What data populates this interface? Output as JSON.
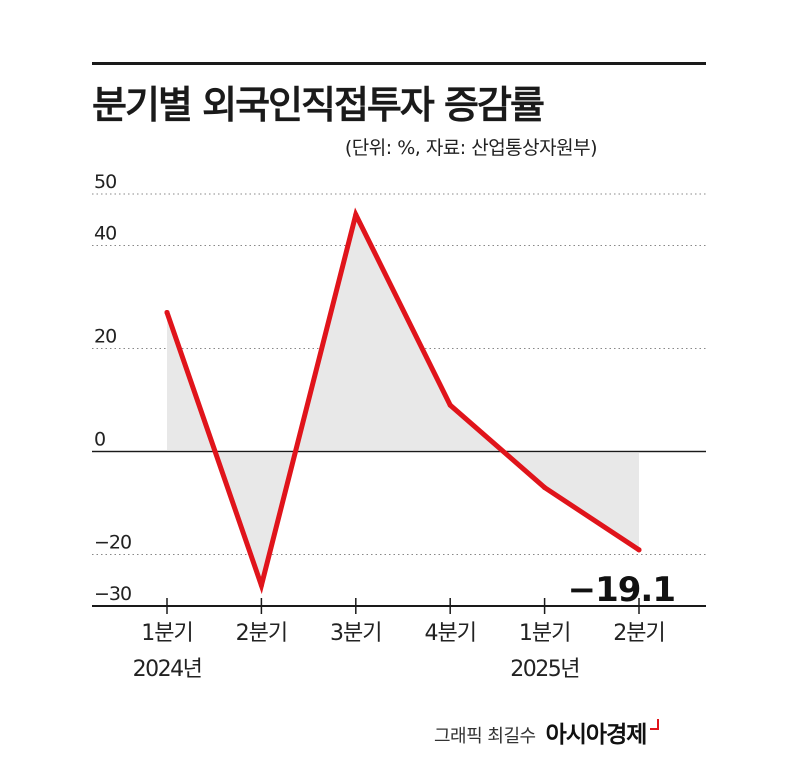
{
  "title": "분기별 외국인직접투자 증감률",
  "subtitle": "(단위: %, 자료: 산업통상자원부)",
  "credit": "그래픽 최길수",
  "brand": "아시아경제",
  "colors": {
    "line": "#e0141b",
    "fill": "#e8e8e8",
    "axis": "#1a1a1a",
    "grid": "#888888"
  },
  "chart_data": {
    "type": "line",
    "categories": [
      "1분기",
      "2분기",
      "3분기",
      "4분기",
      "1분기",
      "2분기"
    ],
    "year_labels": [
      "2024년",
      "",
      "",
      "",
      "2025년",
      ""
    ],
    "values": [
      27.0,
      -26.0,
      46.0,
      9.0,
      -7.0,
      -19.1
    ],
    "ylim": [
      -30,
      50
    ],
    "yticks": [
      50,
      40,
      20,
      0,
      -20,
      -30
    ],
    "ytick_labels": [
      "50",
      "40",
      "20",
      "0",
      "−20",
      "−30"
    ],
    "grid": "dotted horizontal",
    "annotation": {
      "text": "−19.1",
      "index": 5
    }
  }
}
